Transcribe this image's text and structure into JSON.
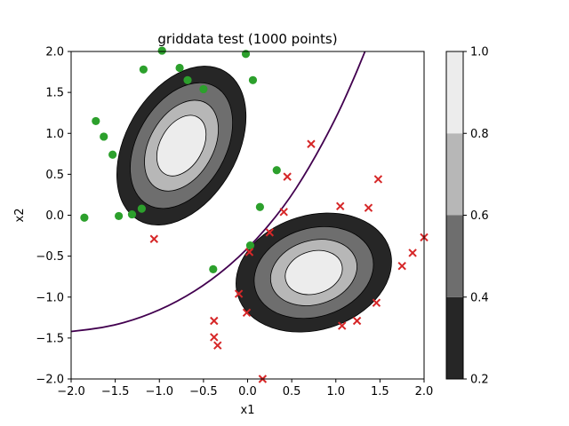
{
  "chart_data": {
    "type": "scatter",
    "title": "griddata test (1000 points)",
    "xlabel": "x1",
    "ylabel": "x2",
    "xlim": [
      -2.0,
      2.0
    ],
    "ylim": [
      -2.0,
      2.0
    ],
    "x_ticks": [
      -2.0,
      -1.5,
      -1.0,
      -0.5,
      0.0,
      0.5,
      1.0,
      1.5,
      2.0
    ],
    "x_tick_labels": [
      "−2.0",
      "−1.5",
      "−1.0",
      "−0.5",
      "0.0",
      "0.5",
      "1.0",
      "1.5",
      "2.0"
    ],
    "y_ticks": [
      -2.0,
      -1.5,
      -1.0,
      -0.5,
      0.0,
      0.5,
      1.0,
      1.5,
      2.0
    ],
    "y_tick_labels": [
      "−2.0",
      "−1.5",
      "−1.0",
      "−0.5",
      "0.0",
      "0.5",
      "1.0",
      "1.5",
      "2.0"
    ],
    "grid": false,
    "series": [
      {
        "marker": "circle",
        "color": "#2ca02c",
        "points": [
          [
            -1.85,
            -0.03
          ],
          [
            -1.72,
            1.15
          ],
          [
            -1.63,
            0.96
          ],
          [
            -1.53,
            0.74
          ],
          [
            -1.46,
            -0.01
          ],
          [
            -1.31,
            0.01
          ],
          [
            -1.2,
            0.08
          ],
          [
            -1.18,
            1.78
          ],
          [
            -0.97,
            2.01
          ],
          [
            -0.77,
            1.8
          ],
          [
            -0.68,
            1.65
          ],
          [
            -0.5,
            1.54
          ],
          [
            -0.39,
            -0.66
          ],
          [
            -0.02,
            1.97
          ],
          [
            0.06,
            1.65
          ],
          [
            0.14,
            0.1
          ],
          [
            0.33,
            0.55
          ],
          [
            0.03,
            -0.37
          ]
        ]
      },
      {
        "marker": "x",
        "color": "#d62728",
        "points": [
          [
            -1.06,
            -0.29
          ],
          [
            -0.38,
            -1.29
          ],
          [
            -0.38,
            -1.49
          ],
          [
            -0.34,
            -1.59
          ],
          [
            -0.1,
            -0.96
          ],
          [
            -0.01,
            -1.19
          ],
          [
            0.02,
            -0.45
          ],
          [
            0.17,
            -2.0
          ],
          [
            0.25,
            -0.21
          ],
          [
            0.41,
            0.04
          ],
          [
            0.45,
            0.47
          ],
          [
            0.72,
            0.87
          ],
          [
            1.05,
            0.11
          ],
          [
            1.07,
            -1.35
          ],
          [
            1.24,
            -1.29
          ],
          [
            1.37,
            0.09
          ],
          [
            1.46,
            -1.07
          ],
          [
            1.48,
            0.44
          ],
          [
            1.75,
            -0.62
          ],
          [
            1.87,
            -0.46
          ],
          [
            2.0,
            -0.27
          ]
        ]
      }
    ],
    "contours": [
      {
        "center": [
          -0.75,
          0.85
        ],
        "rx": [
          0.63,
          0.5,
          0.36,
          0.24
        ],
        "ry": [
          1.05,
          0.83,
          0.6,
          0.4
        ],
        "rotation_deg": 30
      },
      {
        "center": [
          0.75,
          -0.7
        ],
        "rx": [
          0.9,
          0.69,
          0.5,
          0.33
        ],
        "ry": [
          0.7,
          0.54,
          0.39,
          0.26
        ],
        "rotation_deg": -17
      }
    ],
    "contour_colors": [
      "#262626",
      "#6e6e6e",
      "#b7b7b7",
      "#ececec"
    ],
    "boundary_curve": {
      "color": "#42004f",
      "points": [
        [
          -2.0,
          -1.42
        ],
        [
          -1.6,
          -1.37
        ],
        [
          -1.2,
          -1.25
        ],
        [
          -0.8,
          -1.06
        ],
        [
          -0.4,
          -0.79
        ],
        [
          0.0,
          -0.42
        ],
        [
          0.4,
          0.08
        ],
        [
          0.7,
          0.58
        ],
        [
          1.0,
          1.18
        ],
        [
          1.2,
          1.66
        ],
        [
          1.3,
          1.92
        ],
        [
          1.33,
          2.0
        ]
      ]
    },
    "colorbar": {
      "ticks": [
        0.2,
        0.4,
        0.6,
        0.8,
        1.0
      ],
      "tick_labels": [
        "0.2",
        "0.4",
        "0.6",
        "0.8",
        "1.0"
      ],
      "band_colors": [
        "#262626",
        "#6e6e6e",
        "#b7b7b7",
        "#ececec"
      ]
    }
  }
}
